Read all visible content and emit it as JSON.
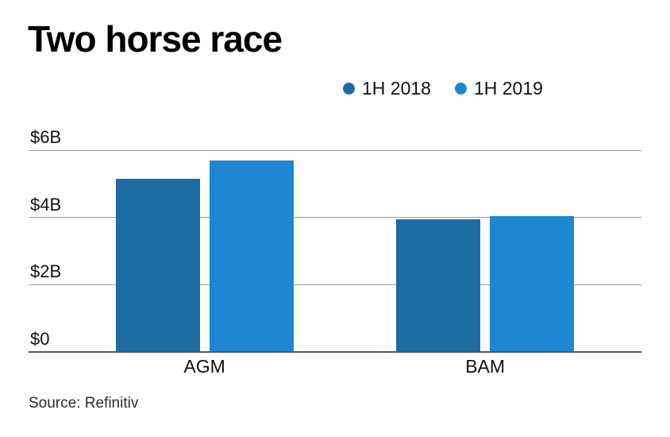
{
  "title": "Two horse race",
  "source": "Source: Refinitiv",
  "legend": [
    {
      "label": "1H 2018",
      "color": "#1d6ba3"
    },
    {
      "label": "1H 2019",
      "color": "#1f87d1"
    }
  ],
  "colors": {
    "series_2018": "#1d6ba3",
    "series_2019": "#1f87d1",
    "gridline": "#9e9e9e",
    "baseline": "#54565a",
    "text": "#111111"
  },
  "chart_data": {
    "type": "bar",
    "title": "Two horse race",
    "categories": [
      "AGM",
      "BAM"
    ],
    "series": [
      {
        "name": "1H 2018",
        "color": "#1d6ba3",
        "values": [
          5.15,
          3.95
        ]
      },
      {
        "name": "1H 2019",
        "color": "#1f87d1",
        "values": [
          5.7,
          4.05
        ]
      }
    ],
    "xlabel": "",
    "ylabel": "",
    "ylim": [
      0,
      6
    ],
    "yticks": [
      {
        "value": 0,
        "label": "$0"
      },
      {
        "value": 2,
        "label": "$2B"
      },
      {
        "value": 4,
        "label": "$4B"
      },
      {
        "value": 6,
        "label": "$6B"
      }
    ],
    "grid": true,
    "legend_position": "top-right",
    "source": "Source: Refinitiv"
  }
}
